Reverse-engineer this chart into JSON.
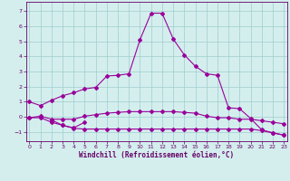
{
  "xlabel": "Windchill (Refroidissement éolien,°C)",
  "bg_color": "#d4eeee",
  "grid_color": "#a0cccc",
  "line_color": "#990099",
  "x_ticks": [
    0,
    1,
    2,
    3,
    4,
    5,
    6,
    7,
    8,
    9,
    10,
    11,
    12,
    13,
    14,
    15,
    16,
    17,
    18,
    19,
    20,
    21,
    22,
    23
  ],
  "y_ticks": [
    -1,
    0,
    1,
    2,
    3,
    4,
    5,
    6,
    7
  ],
  "xlim": [
    -0.3,
    23.3
  ],
  "ylim": [
    -1.6,
    7.6
  ],
  "series1_x": [
    0,
    1,
    2,
    3,
    4,
    5,
    6,
    7,
    8,
    9,
    10,
    11,
    12,
    13,
    14,
    15,
    16,
    17,
    18,
    19,
    20,
    21,
    22,
    23
  ],
  "series1_y": [
    1.0,
    0.75,
    1.1,
    1.4,
    1.6,
    1.85,
    1.95,
    2.7,
    2.75,
    2.85,
    5.1,
    6.85,
    6.85,
    5.15,
    4.1,
    3.35,
    2.85,
    2.75,
    0.6,
    0.55,
    -0.1,
    -0.85,
    -1.05,
    -1.2
  ],
  "series2_x": [
    0,
    1,
    2,
    3,
    4,
    5,
    6,
    7,
    8,
    9,
    10,
    11,
    12,
    13,
    14,
    15,
    16,
    17,
    18,
    19,
    20,
    21,
    22,
    23
  ],
  "series2_y": [
    -0.05,
    0.05,
    -0.15,
    -0.15,
    -0.15,
    0.05,
    0.15,
    0.25,
    0.3,
    0.35,
    0.35,
    0.35,
    0.35,
    0.35,
    0.3,
    0.25,
    0.05,
    -0.05,
    -0.05,
    -0.15,
    -0.15,
    -0.25,
    -0.35,
    -0.45
  ],
  "series3_x": [
    0,
    1,
    2,
    3,
    4,
    5,
    6,
    7,
    8,
    9,
    10,
    11,
    12,
    13,
    14,
    15,
    16,
    17,
    18,
    19,
    20,
    21,
    22,
    23
  ],
  "series3_y": [
    -0.05,
    -0.05,
    -0.35,
    -0.55,
    -0.75,
    -0.8,
    -0.8,
    -0.8,
    -0.8,
    -0.8,
    -0.8,
    -0.8,
    -0.8,
    -0.8,
    -0.8,
    -0.8,
    -0.8,
    -0.8,
    -0.8,
    -0.8,
    -0.8,
    -0.9,
    -1.05,
    -1.2
  ],
  "series4_x": [
    2,
    3,
    4,
    5
  ],
  "series4_y": [
    -0.2,
    -0.55,
    -0.72,
    -0.35
  ]
}
